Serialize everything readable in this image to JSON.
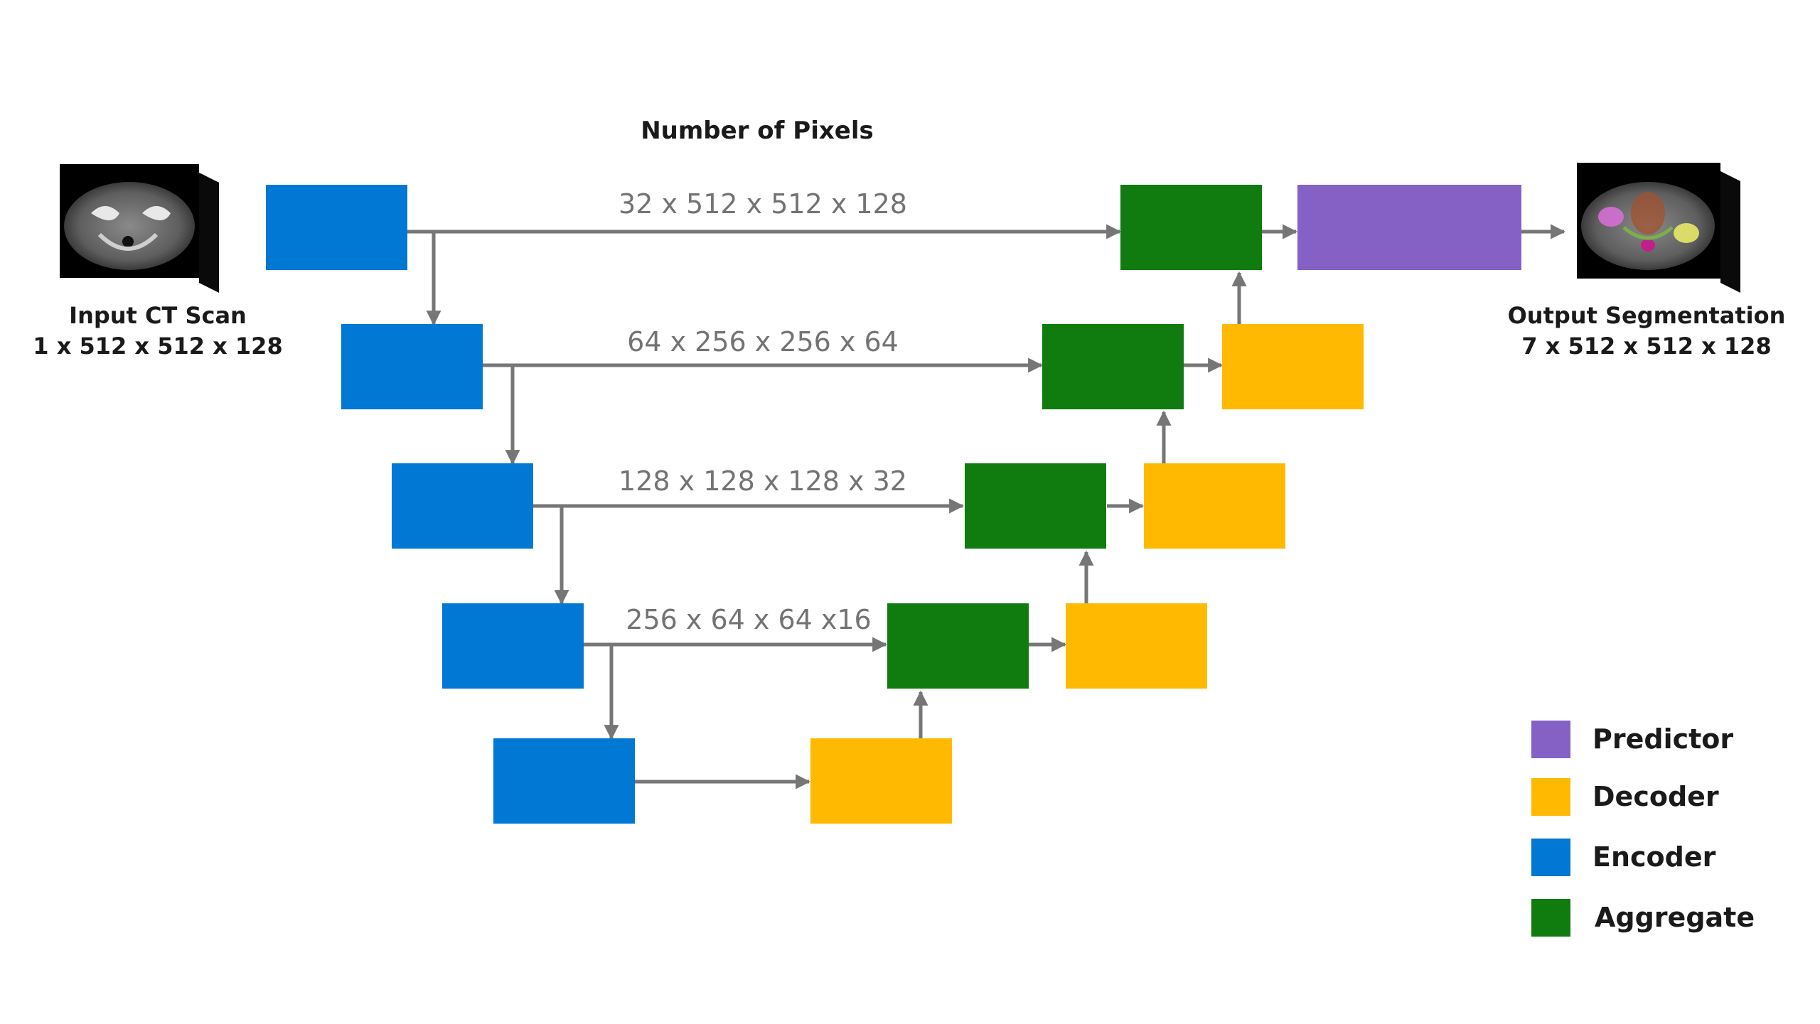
{
  "title": "Number of Pixels",
  "input": {
    "label": "Input CT Scan",
    "dims": "1 x 512 x 512 x 128"
  },
  "output": {
    "label": "Output Segmentation",
    "dims": "7 x 512 x 512 x 128"
  },
  "levels": [
    {
      "dims": "32 x 512 x 512 x 128"
    },
    {
      "dims": "64 x 256 x 256 x 64"
    },
    {
      "dims": "128 x 128 x 128 x 32"
    },
    {
      "dims": "256 x 64 x 64 x16"
    }
  ],
  "legend": [
    {
      "label": "Predictor",
      "color": "#8661c5"
    },
    {
      "label": "Decoder",
      "color": "#ffb900"
    },
    {
      "label": "Encoder",
      "color": "#0078d4"
    },
    {
      "label": "Aggregate",
      "color": "#107c10"
    }
  ],
  "colors": {
    "encoder": "#0078d4",
    "decoder": "#ffb900",
    "aggregate": "#107c10",
    "predictor": "#8661c5",
    "arrow": "#767676",
    "dims_text": "#737373"
  }
}
